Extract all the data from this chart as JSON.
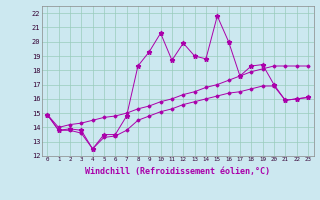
{
  "xlabel": "Windchill (Refroidissement éolien,°C)",
  "xlim": [
    -0.5,
    23.5
  ],
  "ylim": [
    12,
    22.5
  ],
  "yticks": [
    12,
    13,
    14,
    15,
    16,
    17,
    18,
    19,
    20,
    21,
    22
  ],
  "xticks": [
    0,
    1,
    2,
    3,
    4,
    5,
    6,
    7,
    8,
    9,
    10,
    11,
    12,
    13,
    14,
    15,
    16,
    17,
    18,
    19,
    20,
    21,
    22,
    23
  ],
  "bg_color": "#cce8f0",
  "grid_color": "#99ccbb",
  "line_color": "#aa00aa",
  "main_series": [
    14.9,
    13.8,
    13.9,
    13.8,
    12.5,
    13.5,
    13.5,
    14.8,
    18.3,
    19.3,
    20.6,
    18.7,
    19.9,
    19.0,
    18.8,
    21.8,
    20.0,
    17.6,
    18.3,
    18.4,
    17.0,
    15.9,
    16.0,
    16.1
  ],
  "min_series": [
    14.9,
    13.8,
    13.8,
    13.6,
    12.5,
    13.3,
    13.4,
    13.8,
    14.5,
    14.8,
    15.1,
    15.3,
    15.6,
    15.8,
    16.0,
    16.2,
    16.4,
    16.5,
    16.7,
    16.9,
    16.9,
    15.9,
    16.0,
    16.1
  ],
  "max_series": [
    14.9,
    14.0,
    14.2,
    14.3,
    14.5,
    14.7,
    14.8,
    15.0,
    15.3,
    15.5,
    15.8,
    16.0,
    16.3,
    16.5,
    16.8,
    17.0,
    17.3,
    17.6,
    17.9,
    18.1,
    18.3,
    18.3,
    18.3,
    18.3
  ]
}
